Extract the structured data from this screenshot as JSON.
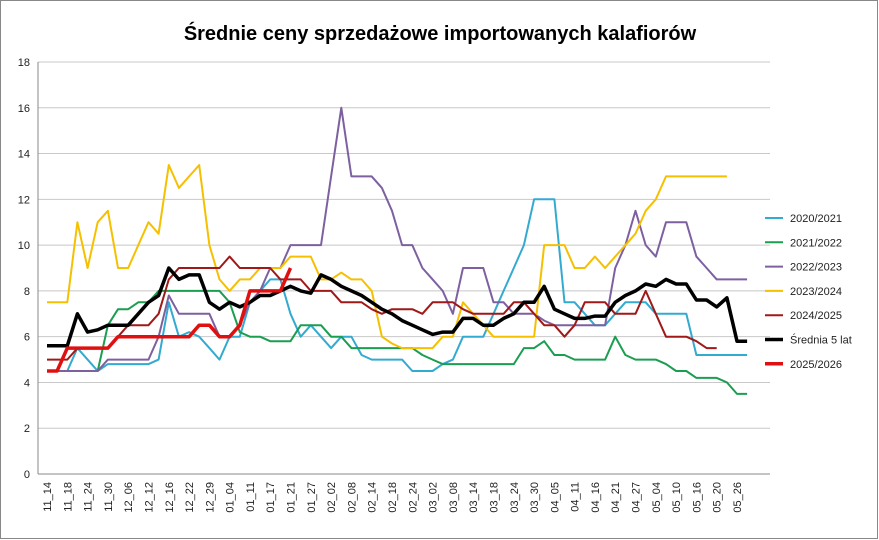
{
  "chart_data": {
    "type": "line",
    "title": "Średnie ceny sprzedażowe importowanych kalafiorów",
    "categories": [
      "11_14",
      null,
      "11_18",
      null,
      "11_24",
      null,
      "11_30",
      null,
      "12_06",
      null,
      "12_12",
      null,
      "12_16",
      null,
      "12_22",
      null,
      "12_29",
      null,
      "01_04",
      null,
      "01_11",
      null,
      "01_17",
      null,
      "01_21",
      null,
      "01_27",
      null,
      "02_02",
      null,
      "02_08",
      null,
      "02_14",
      null,
      "02_18",
      null,
      "02_24",
      null,
      "03_02",
      null,
      "03_08",
      null,
      "03_14",
      null,
      "03_18",
      null,
      "03_24",
      null,
      "03_30",
      null,
      "04_05",
      null,
      "04_11",
      null,
      "04_16",
      null,
      "04_21",
      null,
      "04_27",
      null,
      "05_04",
      null,
      "05_10",
      null,
      "05_16",
      null,
      "05_20",
      null,
      "05_26",
      null
    ],
    "ylim": [
      0,
      18
    ],
    "yticks": [
      0,
      2,
      4,
      6,
      8,
      10,
      12,
      14,
      16,
      18
    ],
    "grid": true,
    "legend": "right",
    "series": [
      {
        "name": "2020/2021",
        "color": "#33aad0",
        "width": 2,
        "values": [
          4.5,
          4.5,
          4.5,
          5.5,
          5,
          4.5,
          4.8,
          4.8,
          4.8,
          4.8,
          4.8,
          5,
          7.5,
          6,
          6.2,
          6,
          5.5,
          5,
          6,
          6,
          7.5,
          8,
          8.5,
          8.5,
          7,
          6,
          6.5,
          6,
          5.5,
          6,
          6,
          5.2,
          5,
          5,
          5,
          5,
          4.5,
          4.5,
          4.5,
          4.8,
          5,
          6,
          6,
          6,
          7,
          8,
          9,
          10,
          12,
          12,
          12,
          7.5,
          7.5,
          7,
          6.5,
          6.5,
          7,
          7.5,
          7.5,
          7.5,
          7,
          7,
          7,
          7,
          5.2,
          5.2,
          5.2,
          5.2,
          5.2,
          5.2
        ]
      },
      {
        "name": "2021/2022",
        "color": "#1a9e50",
        "width": 2,
        "values": [
          4.5,
          4.5,
          4.5,
          4.5,
          4.5,
          4.5,
          6.5,
          7.2,
          7.2,
          7.5,
          7.5,
          8,
          8,
          8,
          8,
          8,
          8,
          8,
          7.5,
          6.2,
          6,
          6,
          5.8,
          5.8,
          5.8,
          6.5,
          6.5,
          6.5,
          6,
          6,
          5.5,
          5.5,
          5.5,
          5.5,
          5.5,
          5.5,
          5.5,
          5.2,
          5,
          4.8,
          4.8,
          4.8,
          4.8,
          4.8,
          4.8,
          4.8,
          4.8,
          5.5,
          5.5,
          5.8,
          5.2,
          5.2,
          5,
          5,
          5,
          5,
          6,
          5.2,
          5,
          5,
          5,
          4.8,
          4.5,
          4.5,
          4.2,
          4.2,
          4.2,
          4,
          3.5,
          3.5
        ]
      },
      {
        "name": "2022/2023",
        "color": "#7d60a0",
        "width": 2,
        "values": [
          4.5,
          4.5,
          4.5,
          4.5,
          4.5,
          4.5,
          5,
          5,
          5,
          5,
          5,
          6,
          7.8,
          7,
          7,
          7,
          7,
          6,
          6,
          6.5,
          7.5,
          8,
          9,
          9,
          10,
          10,
          10,
          10,
          13,
          16,
          13,
          13,
          13,
          12.5,
          11.5,
          10,
          10,
          9,
          8.5,
          8,
          7,
          9,
          9,
          9,
          7.5,
          7.5,
          7,
          7,
          7,
          6.7,
          6.5,
          6.5,
          6.5,
          6.5,
          6.5,
          6.5,
          9,
          10,
          11.5,
          10,
          9.5,
          11,
          11,
          11,
          9.5,
          9,
          8.5,
          8.5,
          8.5,
          8.5
        ]
      },
      {
        "name": "2023/2024",
        "color": "#f5c000",
        "width": 2,
        "values": [
          7.5,
          7.5,
          7.5,
          11,
          9,
          11,
          11.5,
          9,
          9,
          10,
          11,
          10.5,
          13.5,
          12.5,
          13,
          13.5,
          10,
          8.5,
          8,
          8.5,
          8.5,
          9,
          9,
          9,
          9.5,
          9.5,
          9.5,
          8.5,
          8.5,
          8.8,
          8.5,
          8.5,
          8,
          6,
          5.7,
          5.5,
          5.5,
          5.5,
          5.5,
          6,
          6,
          7.5,
          7,
          6.5,
          6,
          6,
          6,
          6,
          6,
          10,
          10,
          10,
          9,
          9,
          9.5,
          9,
          9.5,
          10,
          10.5,
          11.5,
          12,
          13,
          13,
          13,
          13,
          13,
          13,
          13,
          null,
          null
        ]
      },
      {
        "name": "2024/2025",
        "color": "#a01818",
        "width": 2,
        "values": [
          5,
          5,
          5,
          5.5,
          5.5,
          5.5,
          5.5,
          6,
          6.5,
          6.5,
          6.5,
          7,
          8.5,
          9,
          9,
          9,
          9,
          9,
          9.5,
          9,
          9,
          9,
          9,
          8.5,
          8.5,
          8.5,
          8,
          8,
          8,
          7.5,
          7.5,
          7.5,
          7.2,
          7,
          7.2,
          7.2,
          7.2,
          7,
          7.5,
          7.5,
          7.5,
          7.2,
          7,
          7,
          7,
          7,
          7.5,
          7.5,
          7,
          6.5,
          6.5,
          6,
          6.5,
          7.5,
          7.5,
          7.5,
          7,
          7,
          7,
          8,
          7,
          6,
          6,
          6,
          5.8,
          5.5,
          5.5,
          null,
          null,
          null
        ]
      },
      {
        "name": "Średnia 5 lat",
        "color": "#000000",
        "width": 3.5,
        "values": [
          5.6,
          5.6,
          5.6,
          7,
          6.2,
          6.3,
          6.5,
          6.5,
          6.5,
          7,
          7.5,
          7.8,
          9,
          8.5,
          8.7,
          8.7,
          7.5,
          7.2,
          7.5,
          7.3,
          7.5,
          7.8,
          7.8,
          8,
          8.2,
          8,
          7.9,
          8.7,
          8.5,
          8.2,
          8,
          7.8,
          7.5,
          7.2,
          7,
          6.7,
          6.5,
          6.3,
          6.1,
          6.2,
          6.2,
          6.8,
          6.8,
          6.5,
          6.5,
          6.8,
          7,
          7.5,
          7.5,
          8.2,
          7.2,
          7,
          6.8,
          6.8,
          6.9,
          6.9,
          7.5,
          7.8,
          8,
          8.3,
          8.2,
          8.5,
          8.3,
          8.3,
          7.6,
          7.6,
          7.3,
          7.7,
          5.8,
          5.8
        ]
      },
      {
        "name": "2025/2026",
        "color": "#e01010",
        "width": 3.5,
        "values": [
          4.5,
          4.5,
          5.5,
          5.5,
          5.5,
          5.5,
          5.5,
          6,
          6,
          6,
          6,
          6,
          6,
          6,
          6,
          6.5,
          6.5,
          6,
          6,
          6.5,
          8,
          8,
          8,
          8,
          9,
          null,
          null,
          null,
          null,
          null,
          null,
          null,
          null,
          null,
          null,
          null,
          null,
          null,
          null,
          null,
          null,
          null,
          null,
          null,
          null,
          null,
          null,
          null,
          null,
          null,
          null,
          null,
          null,
          null,
          null,
          null,
          null,
          null,
          null,
          null,
          null,
          null,
          null,
          null,
          null,
          null,
          null,
          null,
          null,
          null
        ]
      }
    ]
  }
}
